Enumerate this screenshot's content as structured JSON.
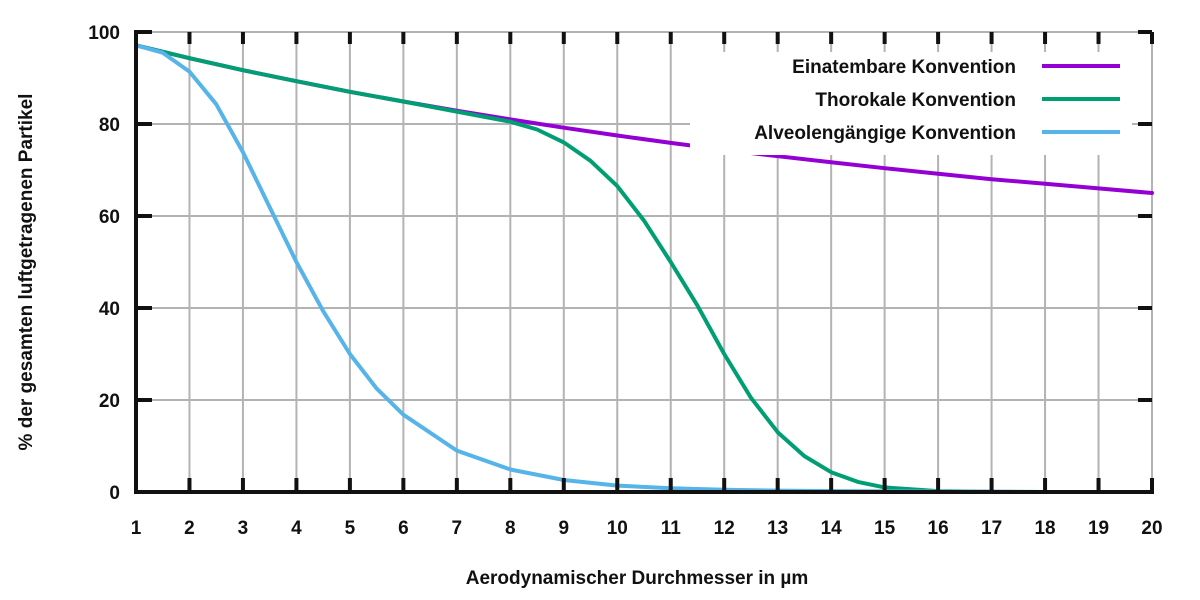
{
  "chart_data": {
    "type": "line",
    "title": "",
    "xlabel": "Aerodynamischer Durchmesser in µm",
    "ylabel": "% der gesamten luftgetragenen Partikel",
    "xlim": [
      1,
      20
    ],
    "ylim": [
      0,
      100
    ],
    "x_ticks": [
      1,
      2,
      3,
      4,
      5,
      6,
      7,
      8,
      9,
      10,
      11,
      12,
      13,
      14,
      15,
      16,
      17,
      18,
      19,
      20
    ],
    "y_ticks": [
      0,
      20,
      40,
      60,
      80,
      100
    ],
    "grid": true,
    "legend_position": "top-right",
    "series": [
      {
        "name": "Einatembare Konvention",
        "color": "#9400d3",
        "x": [
          1,
          2,
          3,
          4,
          5,
          6,
          7,
          8,
          9,
          10,
          11,
          12,
          13,
          14,
          15,
          16,
          17,
          18,
          19,
          20
        ],
        "y": [
          97.1,
          94.3,
          91.7,
          89.3,
          87.0,
          84.9,
          82.9,
          81.0,
          79.2,
          77.5,
          75.9,
          74.4,
          73.0,
          71.7,
          70.4,
          69.2,
          68.0,
          67.0,
          66.0,
          65.0
        ]
      },
      {
        "name": "Thorokale Konvention",
        "color": "#009e73",
        "x": [
          1,
          2,
          3,
          4,
          5,
          6,
          7,
          8,
          8.5,
          9,
          9.5,
          10,
          10.5,
          11,
          11.5,
          12,
          12.5,
          13,
          13.5,
          14,
          14.5,
          15,
          16,
          17,
          18,
          19,
          20
        ],
        "y": [
          97.1,
          94.3,
          91.7,
          89.3,
          87.0,
          84.9,
          82.7,
          80.5,
          78.8,
          76.0,
          72.0,
          66.5,
          59.0,
          50.0,
          40.5,
          30.0,
          20.5,
          13.0,
          7.8,
          4.3,
          2.2,
          1.0,
          0.2,
          0.05,
          0,
          0,
          0
        ]
      },
      {
        "name": "Alveolengängige Konvention",
        "color": "#56b4e9",
        "x": [
          1,
          1.5,
          2,
          2.5,
          3,
          3.5,
          4,
          4.5,
          5,
          5.5,
          6,
          7,
          8,
          9,
          10,
          11,
          12,
          13,
          14,
          16,
          18,
          20
        ],
        "y": [
          97.1,
          95.5,
          91.4,
          84.3,
          73.9,
          61.9,
          50.0,
          39.3,
          30.0,
          22.5,
          16.8,
          9.0,
          4.9,
          2.6,
          1.4,
          0.8,
          0.5,
          0.3,
          0.2,
          0.1,
          0,
          0
        ]
      }
    ]
  }
}
